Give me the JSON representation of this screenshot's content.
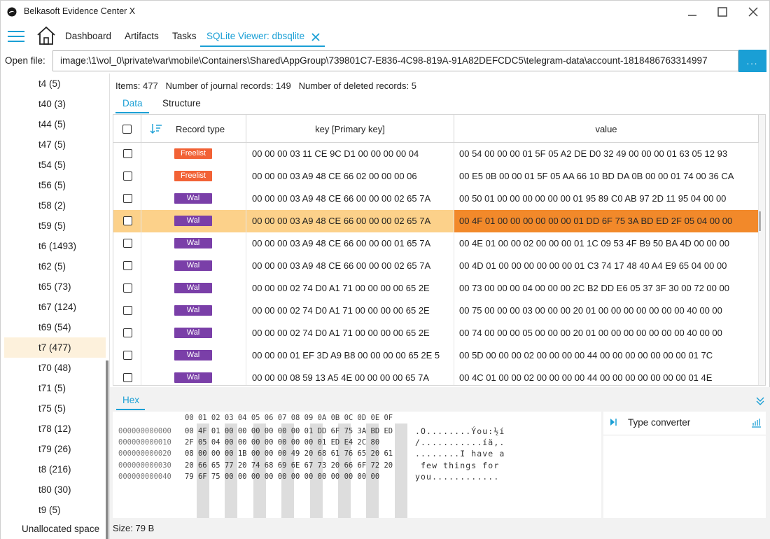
{
  "window": {
    "title": "Belkasoft Evidence Center X"
  },
  "nav": {
    "tabs": [
      "Dashboard",
      "Artifacts",
      "Tasks"
    ],
    "active_tab": "SQLite Viewer: dbsqlite"
  },
  "openfile": {
    "label": "Open file:",
    "path": "image:\\1\\vol_0\\private\\var\\mobile\\Containers\\Shared\\AppGroup\\739801C7-E836-4C98-819A-91A82DEFCDC5\\telegram-data\\account-1818486763314997",
    "browse_label": "..."
  },
  "sidebar": {
    "items": [
      {
        "label": "t4 (5)"
      },
      {
        "label": "t40 (3)"
      },
      {
        "label": "t44 (5)"
      },
      {
        "label": "t47 (5)"
      },
      {
        "label": "t54 (5)"
      },
      {
        "label": "t56 (5)"
      },
      {
        "label": "t58 (2)"
      },
      {
        "label": "t59 (5)"
      },
      {
        "label": "t6 (1493)"
      },
      {
        "label": "t62 (5)"
      },
      {
        "label": "t65 (73)"
      },
      {
        "label": "t67 (124)"
      },
      {
        "label": "t69 (54)"
      },
      {
        "label": "t7 (477)"
      },
      {
        "label": "t70 (48)"
      },
      {
        "label": "t71 (5)"
      },
      {
        "label": "t75 (5)"
      },
      {
        "label": "t78 (12)"
      },
      {
        "label": "t79 (26)"
      },
      {
        "label": "t8 (216)"
      },
      {
        "label": "t80 (30)"
      },
      {
        "label": "t9 (5)"
      }
    ],
    "unallocated": "Unallocated space",
    "selected_index": 13
  },
  "info": {
    "text": "Items: 477   Number of journal records: 149   Number of deleted records: 5"
  },
  "subtabs": {
    "data": "Data",
    "structure": "Structure"
  },
  "grid": {
    "columns": {
      "record_type": "Record type",
      "key": "key [Primary key]",
      "value": "value"
    },
    "rows": [
      {
        "type": "Freelist",
        "key": "00 00 00 03 11 CE 9C D1 00 00 00 00 04",
        "value": "00 54 00 00 00 01 5F 05 A2 DE D0 32 49 00 00 00 01 63 05 12 93"
      },
      {
        "type": "Freelist",
        "key": "00 00 00 03 A9 48 CE 66 02 00 00 00 06",
        "value": "00 E5 0B 00 00 01 5F 05 AA 66 10 BD DA 0B 00 00 01 74 00 36 CA"
      },
      {
        "type": "Wal",
        "key": "00 00 00 03 A9 48 CE 66 00 00 00 02 65 7A",
        "value": "00 50 01 00 00 00 00 00 00 01 95 89 C0 AB 97 2D 11 95 04 00 00"
      },
      {
        "type": "Wal",
        "key": "00 00 00 03 A9 48 CE 66 00 00 00 02 65 7A",
        "value": "00 4F 01 00 00 00 00 00 00 01 DD 6F 75 3A BD ED 2F 05 04 00 00"
      },
      {
        "type": "Wal",
        "key": "00 00 00 03 A9 48 CE 66 00 00 00 01 65 7A",
        "value": "00 4E 01 00 00 02 00 00 00 01 1C 09 53 4F B9 50 BA 4D 00 00 00"
      },
      {
        "type": "Wal",
        "key": "00 00 00 03 A9 48 CE 66 00 00 00 02 65 7A",
        "value": "00 4D 01 00 00 00 00 00 00 01 C3 74 17 48 40 A4 E9 65 04 00 00"
      },
      {
        "type": "Wal",
        "key": "00 00 00 02 74 D0 A1 71 00 00 00 00 65 2E",
        "value": "00 73 00 00 00 04 00 00 00 2C B2 DD E6 05 37 3F 30 00 72 00 00"
      },
      {
        "type": "Wal",
        "key": "00 00 00 02 74 D0 A1 71 00 00 00 00 65 2E",
        "value": "00 75 00 00 00 03 00 00 00 20 01 00 00 00 00 00 00 00 40 00 00"
      },
      {
        "type": "Wal",
        "key": "00 00 00 02 74 D0 A1 71 00 00 00 00 65 2E",
        "value": "00 74 00 00 00 05 00 00 00 20 01 00 00 00 00 00 00 00 40 00 00"
      },
      {
        "type": "Wal",
        "key": "00 00 00 01 EF 3D A9 B8 00 00 00 00 65 2E 5",
        "value": "00 5D 00 00 00 02 00 00 00 00 44 00 00 00 00 00 00 00 01 7C"
      },
      {
        "type": "Wal",
        "key": "00 00 00 08 59 13 A5 4E 00 00 00 00 65 7A",
        "value": "00 4C 01 00 00 02 00 00 00 00 44 00 00 00 00 00 00 00 01 4E"
      }
    ],
    "selected_row": 3
  },
  "hex": {
    "tab_label": "Hex",
    "column_header": "00 01 02 03 04 05 06 07 08 09 0A 0B 0C 0D 0E 0F",
    "lines": [
      {
        "offset": "000000000000",
        "bytes": "00 4F 01 00 00 00 00 00 00 01 DD 6F 75 3A BD ED",
        "ascii": ".O........Ýou:½í"
      },
      {
        "offset": "000000000010",
        "bytes": "2F 05 04 00 00 00 00 00 00 00 01 ED E4 2C 80",
        "ascii": "/...........íä,."
      },
      {
        "offset": "000000000020",
        "bytes": "08 00 00 00 1B 00 00 00 49 20 68 61 76 65 20 61",
        "ascii": "........I have a"
      },
      {
        "offset": "000000000030",
        "bytes": "20 66 65 77 20 74 68 69 6E 67 73 20 66 6F 72 20",
        "ascii": " few things for "
      },
      {
        "offset": "000000000040",
        "bytes": "79 6F 75 00 00 00 00 00 00 00 00 00 00 00 00",
        "ascii": "you............"
      }
    ]
  },
  "type_converter": {
    "label": "Type converter"
  },
  "status": {
    "size": "Size: 79 B"
  }
}
